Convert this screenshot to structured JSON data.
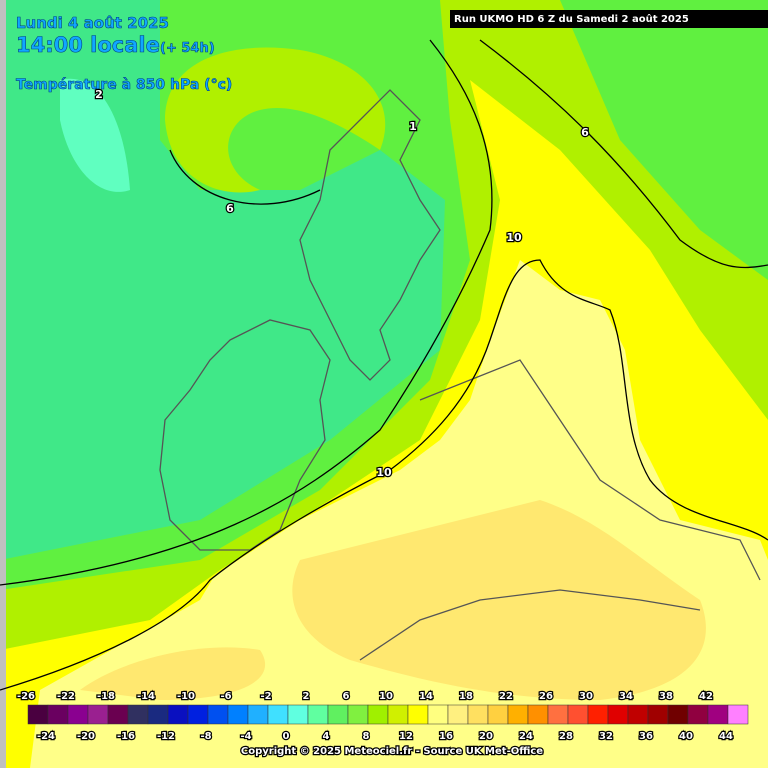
{
  "header": {
    "date": "Lundi 4 août 2025",
    "time": "14:00 locale",
    "lead": "(+ 54h)",
    "field": "Température à 850 hPa (°c)",
    "run": "Run UKMO HD 6 Z du Samedi 2 août 2025"
  },
  "contour_labels": [
    "2",
    "6",
    "6",
    "10",
    "10",
    "1"
  ],
  "legend": {
    "colors": [
      "#4a0040",
      "#6a0060",
      "#8a0090",
      "#9a2090",
      "#6a0050",
      "#303060",
      "#1a2a80",
      "#0a10c0",
      "#0020e0",
      "#0050f0",
      "#0080ff",
      "#20b0ff",
      "#40e0ff",
      "#60ffe0",
      "#60ffa0",
      "#60f060",
      "#80f040",
      "#a0f000",
      "#d0f000",
      "#ffff00",
      "#ffff80",
      "#fff080",
      "#ffe060",
      "#ffd040",
      "#ffb000",
      "#ff9000",
      "#ff7040",
      "#ff5030",
      "#ff2000",
      "#e00000",
      "#c00000",
      "#a00000",
      "#700000",
      "#900040",
      "#a00080",
      "#ff80ff"
    ],
    "top_labels": [
      -26,
      -22,
      -18,
      -14,
      -10,
      -6,
      -2,
      2,
      6,
      10,
      14,
      18,
      22,
      26,
      30,
      34,
      38,
      42
    ],
    "bottom_labels": [
      -24,
      -20,
      -16,
      -12,
      -8,
      -4,
      0,
      4,
      8,
      12,
      16,
      20,
      24,
      28,
      32,
      36,
      40,
      44
    ]
  },
  "copyright": "Copyright © 2025 Meteociel.fr - Source UK Met-Office"
}
